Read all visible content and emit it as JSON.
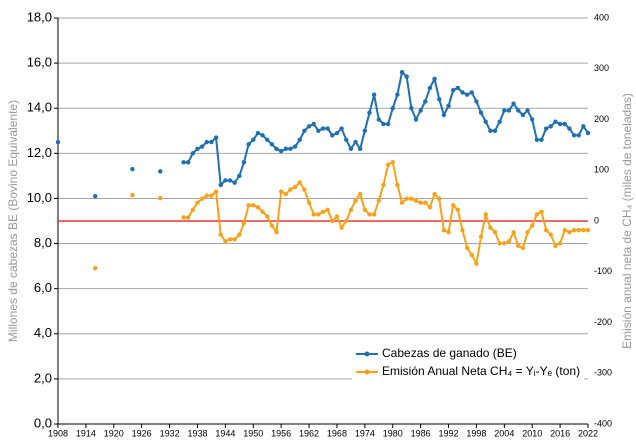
{
  "chart_data": {
    "type": "line",
    "x": [
      1908,
      1912,
      1916,
      1920,
      1924,
      1927,
      1930,
      1932,
      1935,
      1936,
      1937,
      1938,
      1939,
      1940,
      1941,
      1942,
      1943,
      1944,
      1945,
      1946,
      1947,
      1948,
      1949,
      1950,
      1951,
      1952,
      1953,
      1954,
      1955,
      1956,
      1957,
      1958,
      1959,
      1960,
      1961,
      1962,
      1963,
      1964,
      1965,
      1966,
      1967,
      1968,
      1969,
      1970,
      1971,
      1972,
      1973,
      1974,
      1975,
      1976,
      1977,
      1978,
      1979,
      1980,
      1981,
      1982,
      1983,
      1984,
      1985,
      1986,
      1987,
      1988,
      1989,
      1990,
      1991,
      1992,
      1993,
      1994,
      1995,
      1996,
      1997,
      1998,
      1999,
      2000,
      2001,
      2002,
      2003,
      2004,
      2005,
      2006,
      2007,
      2008,
      2009,
      2010,
      2011,
      2012,
      2013,
      2014,
      2015,
      2016,
      2017,
      2018,
      2019,
      2020,
      2021,
      2022
    ],
    "series": [
      {
        "name": "Cabezas de ganado (BE)",
        "color": "#1f6fb2",
        "values": [
          12.5,
          null,
          10.1,
          null,
          11.3,
          null,
          11.2,
          null,
          11.6,
          11.6,
          12.0,
          12.2,
          12.3,
          12.5,
          12.5,
          12.7,
          10.6,
          10.8,
          10.8,
          10.7,
          11.0,
          11.6,
          12.4,
          12.6,
          12.9,
          12.8,
          12.6,
          12.4,
          12.2,
          12.1,
          12.2,
          12.2,
          12.3,
          12.6,
          13.0,
          13.2,
          13.3,
          13.0,
          13.1,
          13.1,
          12.8,
          12.9,
          13.1,
          12.6,
          12.2,
          12.5,
          12.2,
          13.0,
          13.8,
          14.6,
          13.5,
          13.3,
          13.3,
          14.0,
          14.6,
          15.6,
          15.4,
          14.0,
          13.5,
          13.9,
          14.3,
          14.9,
          15.3,
          14.4,
          13.7,
          14.1,
          14.8,
          14.9,
          14.7,
          14.6,
          14.7,
          14.3,
          13.8,
          13.4,
          13.0,
          13.0,
          13.4,
          13.9,
          13.9,
          14.2,
          13.9,
          13.7,
          13.9,
          13.5,
          12.6,
          12.6,
          13.1,
          13.2,
          13.4,
          13.3,
          13.3,
          13.1,
          12.8,
          12.8,
          13.2,
          12.9
        ]
      },
      {
        "name": "Emisión Anual Neta CH₄ = Yᵢ-Yₑ (ton)",
        "color": "#f7a21b",
        "axis": "y2",
        "values": [
          null,
          null,
          -93,
          null,
          51,
          null,
          45,
          null,
          7,
          7,
          22,
          36,
          44,
          50,
          50,
          58,
          -27,
          -40,
          -36,
          -36,
          -27,
          -4,
          31,
          31,
          27,
          18,
          9,
          -9,
          -22,
          58,
          53,
          62,
          67,
          76,
          62,
          36,
          13,
          13,
          18,
          22,
          0,
          9,
          -13,
          0,
          22,
          40,
          53,
          22,
          13,
          13,
          40,
          71,
          111,
          116,
          71,
          36,
          44,
          44,
          40,
          36,
          36,
          27,
          53,
          44,
          -18,
          -22,
          31,
          22,
          -18,
          -53,
          -67,
          -84,
          -31,
          13,
          -13,
          -22,
          -44,
          -44,
          -40,
          -22,
          -49,
          -53,
          -22,
          -9,
          13,
          18,
          -18,
          -27,
          -49,
          -44,
          -18,
          -22,
          -18,
          -18,
          -18,
          -18
        ]
      }
    ],
    "xlim": [
      1908,
      2022
    ],
    "xticks": [
      1908,
      1914,
      1920,
      1926,
      1932,
      1938,
      1944,
      1950,
      1956,
      1962,
      1968,
      1974,
      1980,
      1986,
      1992,
      1998,
      2004,
      2010,
      2016,
      2022
    ],
    "ylim": [
      0,
      18
    ],
    "yticks": [
      {
        "value": 0,
        "label": "0,0"
      },
      {
        "value": 2,
        "label": "2,0"
      },
      {
        "value": 4,
        "label": "4,0"
      },
      {
        "value": 6,
        "label": "6,0"
      },
      {
        "value": 8,
        "label": "8,0"
      },
      {
        "value": 10,
        "label": "10,0"
      },
      {
        "value": 12,
        "label": "12,0"
      },
      {
        "value": 14,
        "label": "14,0"
      },
      {
        "value": 16,
        "label": "16,0"
      },
      {
        "value": 18,
        "label": "18,0"
      }
    ],
    "y2lim": [
      -400,
      400
    ],
    "y2ticks": [
      -400,
      -300,
      -200,
      -100,
      0,
      100,
      200,
      300,
      400
    ],
    "ylabel": "Millones de cabezas BE (Bovino Equivalente)",
    "y2label": "Emisión anual neta de CH₄ (miles de toneladas)",
    "reference_line": {
      "axis": "y2",
      "value": 0,
      "color": "#e53935"
    },
    "grid": true,
    "legend": "lower right"
  }
}
